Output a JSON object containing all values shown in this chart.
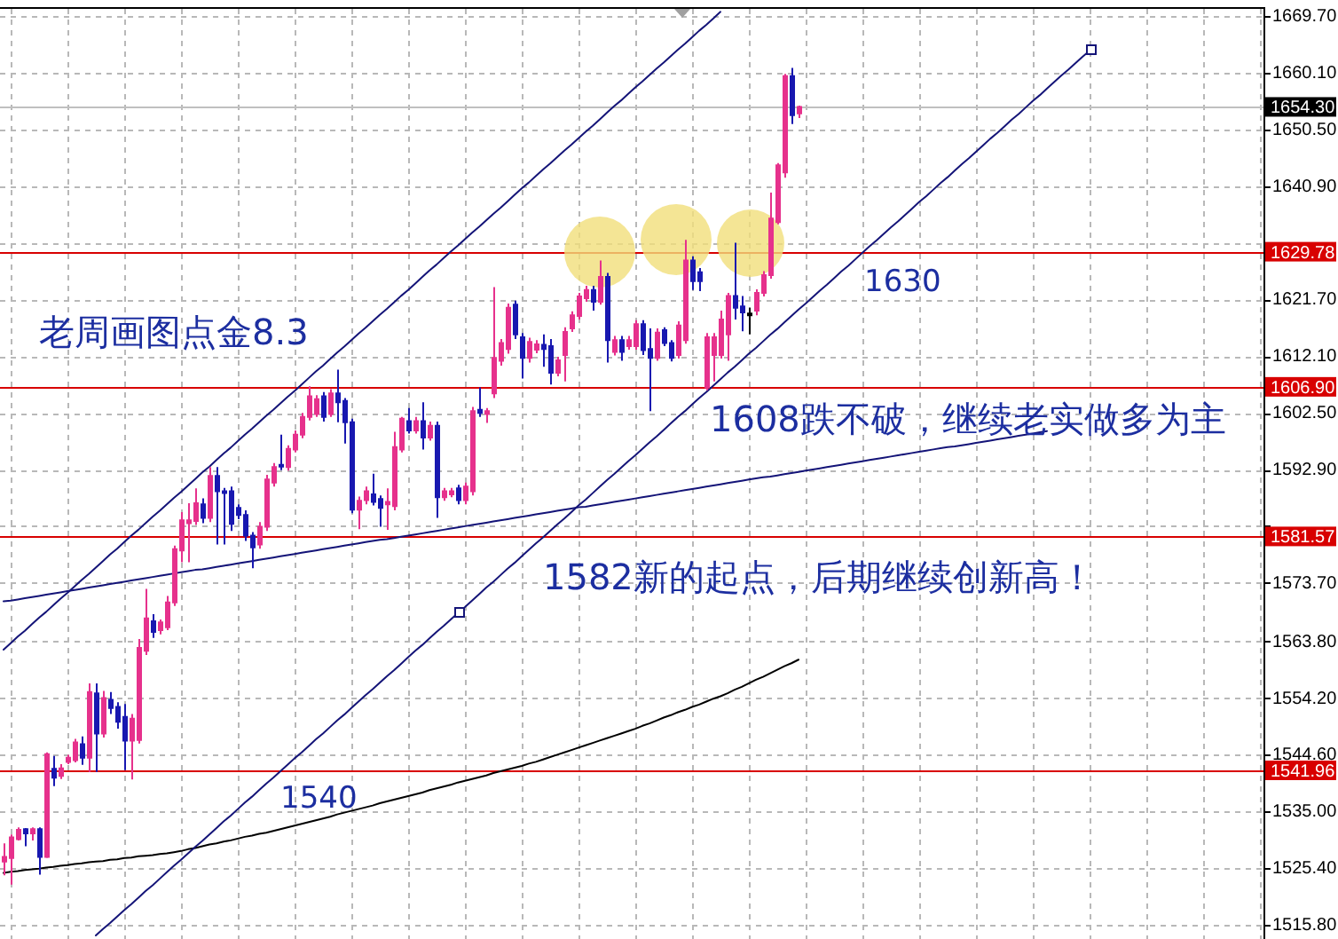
{
  "chart_data": {
    "type": "candlestick",
    "categories": [
      null,
      null,
      null,
      null,
      null,
      null,
      null,
      null,
      null,
      null,
      null,
      null,
      null,
      null,
      null,
      null,
      null,
      null,
      null,
      null,
      null,
      null,
      null,
      null,
      null,
      null,
      null,
      null,
      null,
      null,
      null,
      null,
      null,
      null,
      null,
      null,
      null,
      null,
      null,
      null,
      null,
      null,
      null,
      null,
      null,
      null,
      null,
      null,
      null,
      null,
      null,
      null,
      null,
      null,
      null,
      null,
      null,
      null,
      null,
      null,
      null,
      null,
      null,
      null,
      null,
      null,
      null,
      null,
      null,
      null,
      null,
      null,
      null,
      null,
      null,
      null,
      null,
      null,
      null,
      null,
      null,
      null,
      null,
      null,
      null,
      null,
      null,
      null,
      null,
      null,
      null,
      null,
      null,
      null,
      null,
      null,
      null,
      null,
      null,
      null,
      null,
      null,
      null,
      null,
      null,
      null,
      null,
      null,
      null,
      null,
      null,
      null,
      null,
      null,
      null,
      null,
      null,
      null,
      null,
      null,
      null,
      null,
      null,
      null,
      null,
      null,
      null,
      null,
      null,
      null,
      null,
      null,
      null,
      null,
      null,
      null,
      null,
      null,
      null,
      null,
      null,
      null,
      null,
      null,
      null,
      null,
      null,
      null,
      null,
      null,
      null,
      null,
      null,
      null,
      null,
      null,
      null,
      null,
      null,
      null,
      null,
      null,
      null,
      null,
      null,
      null,
      null,
      null,
      null,
      null,
      null,
      null,
      null,
      null,
      null,
      null,
      null,
      null
    ],
    "ohlc": [
      [
        1526.5,
        1529.6,
        1524.2,
        1527.3
      ],
      [
        1527.1,
        1531.1,
        1522.6,
        1530.6
      ],
      [
        1530.3,
        1532.3,
        1530.1,
        1531.9
      ],
      [
        1532.0,
        1532.2,
        1529.1,
        1531.3
      ],
      [
        1531.3,
        1532.3,
        1530.1,
        1532.0
      ],
      [
        1532.0,
        1532.3,
        1524.3,
        1527.3
      ],
      [
        1527.3,
        1545.0,
        1527.1,
        1544.7
      ],
      [
        1542.2,
        1544.4,
        1539.3,
        1540.7
      ],
      [
        1541.0,
        1543.0,
        1540.5,
        1542.3
      ],
      [
        1543.4,
        1544.6,
        1543.0,
        1544.1
      ],
      [
        1543.7,
        1547.3,
        1543.3,
        1546.7
      ],
      [
        1546.4,
        1547.7,
        1542.9,
        1544.1
      ],
      [
        1544.1,
        1556.7,
        1541.7,
        1555.2
      ],
      [
        1555.0,
        1556.7,
        1541.7,
        1548.2
      ],
      [
        1548.2,
        1555.4,
        1547.5,
        1554.2
      ],
      [
        1553.9,
        1555.2,
        1551.5,
        1552.5
      ],
      [
        1552.7,
        1553.5,
        1549.0,
        1550.2
      ],
      [
        1551.0,
        1553.2,
        1542.0,
        1547.0
      ],
      [
        1547.0,
        1551.5,
        1540.4,
        1550.7
      ],
      [
        1547.1,
        1564.2,
        1546.5,
        1562.7
      ],
      [
        1562.2,
        1572.7,
        1561.5,
        1567.7
      ],
      [
        1567.2,
        1568.4,
        1564.4,
        1565.4
      ],
      [
        1565.7,
        1567.5,
        1565.0,
        1567.0
      ],
      [
        1566.2,
        1571.5,
        1565.7,
        1570.4
      ],
      [
        1570.4,
        1580.0,
        1569.8,
        1579.4
      ],
      [
        1579.2,
        1585.7,
        1577.2,
        1584.3
      ],
      [
        1583.8,
        1587.2,
        1577.2,
        1584.3
      ],
      [
        1584.2,
        1589.7,
        1583.5,
        1587.2
      ],
      [
        1587.0,
        1588.0,
        1583.8,
        1584.7
      ],
      [
        1584.7,
        1593.3,
        1584.0,
        1591.8
      ],
      [
        1591.8,
        1593.3,
        1580.2,
        1589.2
      ],
      [
        1589.2,
        1589.8,
        1580.2,
        1589.0
      ],
      [
        1589.2,
        1590.0,
        1582.5,
        1583.7
      ],
      [
        1586.4,
        1587.0,
        1584.5,
        1585.2
      ],
      [
        1585.2,
        1586.0,
        1580.8,
        1581.7
      ],
      [
        1581.7,
        1582.3,
        1576.2,
        1579.7
      ],
      [
        1580.2,
        1584.0,
        1579.5,
        1583.2
      ],
      [
        1583.2,
        1592.0,
        1582.5,
        1591.2
      ],
      [
        1590.7,
        1594.0,
        1590.0,
        1593.3
      ],
      [
        1593.7,
        1598.8,
        1592.8,
        1593.4
      ],
      [
        1593.3,
        1597.0,
        1592.7,
        1596.4
      ],
      [
        1596.3,
        1599.5,
        1595.8,
        1598.8
      ],
      [
        1598.8,
        1602.5,
        1598.2,
        1601.8
      ],
      [
        1601.8,
        1607.0,
        1601.2,
        1605.3
      ],
      [
        1602.3,
        1605.5,
        1601.8,
        1604.8
      ],
      [
        1605.3,
        1606.0,
        1601.0,
        1601.8
      ],
      [
        1602.3,
        1606.5,
        1601.8,
        1605.8
      ],
      [
        1605.8,
        1609.8,
        1600.9,
        1604.3
      ],
      [
        1604.5,
        1605.0,
        1597.3,
        1600.9
      ],
      [
        1600.9,
        1601.5,
        1585.5,
        1586.1
      ],
      [
        1586.1,
        1588.3,
        1582.8,
        1587.6
      ],
      [
        1587.7,
        1590.0,
        1587.0,
        1589.2
      ],
      [
        1588.7,
        1592.2,
        1586.8,
        1587.4
      ],
      [
        1587.9,
        1588.5,
        1583.2,
        1586.4
      ],
      [
        1587.0,
        1589.7,
        1582.7,
        1587.4
      ],
      [
        1586.7,
        1599.3,
        1586.0,
        1596.7
      ],
      [
        1596.3,
        1601.8,
        1595.8,
        1601.5
      ],
      [
        1601.1,
        1603.3,
        1599.0,
        1599.5
      ],
      [
        1599.5,
        1601.8,
        1599.0,
        1601.1
      ],
      [
        1601.1,
        1604.3,
        1596.3,
        1598.3
      ],
      [
        1598.3,
        1601.0,
        1597.8,
        1600.3
      ],
      [
        1600.3,
        1601.0,
        1584.7,
        1588.2
      ],
      [
        1588.2,
        1589.8,
        1587.6,
        1589.2
      ],
      [
        1588.7,
        1589.8,
        1588.2,
        1589.2
      ],
      [
        1589.7,
        1590.3,
        1587.0,
        1587.7
      ],
      [
        1587.7,
        1590.7,
        1587.0,
        1590.0
      ],
      [
        1589.2,
        1603.5,
        1588.5,
        1602.8
      ],
      [
        1603.0,
        1606.8,
        1601.8,
        1602.5
      ],
      [
        1602.3,
        1603.3,
        1600.8,
        1602.8
      ],
      [
        1605.8,
        1623.8,
        1605.0,
        1611.8
      ],
      [
        1611.3,
        1615.0,
        1610.5,
        1614.3
      ],
      [
        1613.3,
        1621.0,
        1612.5,
        1620.3
      ],
      [
        1620.8,
        1621.5,
        1615.0,
        1615.8
      ],
      [
        1615.3,
        1616.0,
        1608.3,
        1611.8
      ],
      [
        1611.8,
        1615.2,
        1611.0,
        1614.5
      ],
      [
        1613.2,
        1614.8,
        1612.6,
        1614.1
      ],
      [
        1614.0,
        1615.8,
        1610.3,
        1613.3
      ],
      [
        1613.8,
        1615.0,
        1607.3,
        1609.3
      ],
      [
        1609.3,
        1612.0,
        1608.7,
        1611.4
      ],
      [
        1612.3,
        1617.0,
        1607.8,
        1616.2
      ],
      [
        1616.8,
        1619.7,
        1616.2,
        1619.0
      ],
      [
        1618.9,
        1622.8,
        1618.3,
        1622.2
      ],
      [
        1621.9,
        1624.0,
        1621.3,
        1623.3
      ],
      [
        1623.3,
        1624.0,
        1619.8,
        1621.3
      ],
      [
        1621.3,
        1628.3,
        1620.8,
        1625.5
      ],
      [
        1625.5,
        1626.2,
        1611.0,
        1614.8
      ],
      [
        1612.8,
        1615.5,
        1612.2,
        1614.8
      ],
      [
        1614.8,
        1615.5,
        1611.3,
        1612.8
      ],
      [
        1613.8,
        1615.5,
        1613.2,
        1614.8
      ],
      [
        1613.8,
        1618.2,
        1613.2,
        1617.5
      ],
      [
        1617.5,
        1618.2,
        1612.3,
        1613.1
      ],
      [
        1613.3,
        1616.8,
        1602.8,
        1611.8
      ],
      [
        1611.8,
        1616.8,
        1611.3,
        1616.1
      ],
      [
        1616.5,
        1617.0,
        1613.8,
        1614.3
      ],
      [
        1614.3,
        1614.8,
        1611.2,
        1611.8
      ],
      [
        1612.3,
        1618.0,
        1611.7,
        1617.3
      ],
      [
        1614.8,
        1631.8,
        1614.2,
        1628.3
      ],
      [
        1628.3,
        1629.0,
        1623.3,
        1624.8
      ],
      [
        1626.3,
        1627.0,
        1623.1,
        1624.8
      ],
      [
        1606.8,
        1616.0,
        1606.3,
        1615.3
      ],
      [
        1612.3,
        1616.0,
        1607.8,
        1615.3
      ],
      [
        1612.3,
        1619.8,
        1611.7,
        1618.3
      ],
      [
        1615.8,
        1622.8,
        1611.3,
        1622.3
      ],
      [
        1622.3,
        1631.3,
        1618.3,
        1620.3
      ],
      [
        1620.5,
        1622.3,
        1616.3,
        1619.5
      ],
      [
        1619.3,
        1620.3,
        1615.8,
        1619.3
      ],
      [
        1619.8,
        1623.4,
        1619.0,
        1622.8
      ],
      [
        1622.8,
        1626.5,
        1622.2,
        1625.8
      ],
      [
        1625.8,
        1639.8,
        1625.2,
        1635.4
      ],
      [
        1634.8,
        1644.8,
        1634.4,
        1644.4
      ],
      [
        1643.2,
        1659.9,
        1642.3,
        1659.5
      ],
      [
        1659.5,
        1660.9,
        1651.4,
        1652.9
      ],
      [
        1653.2,
        1654.5,
        1652.4,
        1654.3
      ],
      null,
      null,
      null,
      null,
      null,
      null,
      null,
      null,
      null,
      null,
      null,
      null,
      null,
      null,
      null,
      null,
      null,
      null,
      null,
      null,
      null,
      null,
      null,
      null,
      null,
      null,
      null,
      null,
      null,
      null,
      null,
      null,
      null,
      null,
      null,
      null,
      null,
      null,
      null,
      null,
      null,
      null,
      null,
      null,
      null,
      null,
      null,
      null,
      null,
      null,
      null,
      null,
      null,
      null,
      null,
      null,
      null,
      null,
      null,
      null,
      null,
      null,
      null,
      null,
      null
    ],
    "colors": [
      "#e6318c",
      "#e6318c",
      "#e6318c",
      "#1818b0",
      "#e6318c",
      "#1818b0",
      "#e6318c",
      "#1818b0",
      "#e6318c",
      "#e6318c",
      "#e6318c",
      "#1818b0",
      "#e6318c",
      "#1818b0",
      "#e6318c",
      "#1818b0",
      "#1818b0",
      "#1818b0",
      "#e6318c",
      "#e6318c",
      "#e6318c",
      "#1818b0",
      "#e6318c",
      "#e6318c",
      "#e6318c",
      "#e6318c",
      "#e6318c",
      "#e6318c",
      "#1818b0",
      "#e6318c",
      "#1818b0",
      "#1818b0",
      "#1818b0",
      "#1818b0",
      "#1818b0",
      "#1818b0",
      "#e6318c",
      "#e6318c",
      "#e6318c",
      "#1818b0",
      "#e6318c",
      "#e6318c",
      "#e6318c",
      "#e6318c",
      "#e6318c",
      "#1818b0",
      "#e6318c",
      "#1818b0",
      "#1818b0",
      "#1818b0",
      "#e6318c",
      "#e6318c",
      "#1818b0",
      "#1818b0",
      "#e6318c",
      "#e6318c",
      "#e6318c",
      "#1818b0",
      "#e6318c",
      "#1818b0",
      "#e6318c",
      "#1818b0",
      "#e6318c",
      "#e6318c",
      "#1818b0",
      "#e6318c",
      "#e6318c",
      "#1818b0",
      "#e6318c",
      "#e6318c",
      "#e6318c",
      "#e6318c",
      "#1818b0",
      "#1818b0",
      "#e6318c",
      "#e6318c",
      "#1818b0",
      "#1818b0",
      "#e6318c",
      "#e6318c",
      "#e6318c",
      "#e6318c",
      "#e6318c",
      "#1818b0",
      "#e6318c",
      "#1818b0",
      "#e6318c",
      "#1818b0",
      "#e6318c",
      "#e6318c",
      "#1818b0",
      "#1818b0",
      "#e6318c",
      "#1818b0",
      "#1818b0",
      "#e6318c",
      "#e6318c",
      "#1818b0",
      "#1818b0",
      "#e6318c",
      "#e6318c",
      "#e6318c",
      "#e6318c",
      "#1818b0",
      "#1818b0",
      "#000000",
      "#e6318c",
      "#e6318c",
      "#e6318c",
      "#e6318c",
      "#e6318c",
      "#1818b0",
      "#e6318c",
      null,
      null,
      null,
      null,
      null,
      null,
      null,
      null,
      null,
      null,
      null,
      null,
      null,
      null,
      null,
      null,
      null,
      null,
      null,
      null,
      null,
      null,
      null,
      null,
      null,
      null,
      null,
      null,
      null,
      null,
      null,
      null,
      null,
      null,
      null,
      null,
      null,
      null,
      null,
      null,
      null,
      null,
      null,
      null,
      null,
      null,
      null,
      null,
      null,
      null,
      null,
      null,
      null,
      null,
      null,
      null,
      null,
      null,
      null,
      null,
      null,
      null,
      null,
      null,
      null
    ],
    "series": [
      {
        "type": "line",
        "color": "#000000",
        "values": [
          1524.6,
          1524.8,
          1524.9,
          1525.1,
          1525.2,
          1525.3,
          1525.5,
          1525.6,
          1525.8,
          1525.9,
          1526.1,
          1526.2,
          1526.4,
          1526.5,
          1526.6,
          1526.8,
          1526.9,
          1527.1,
          1527.2,
          1527.4,
          1527.5,
          1527.6,
          1527.8,
          1527.9,
          1528.1,
          1528.3,
          1528.6,
          1528.8,
          1529.1,
          1529.4,
          1529.6,
          1529.9,
          1530.1,
          1530.4,
          1530.7,
          1530.9,
          1531.2,
          1531.4,
          1531.7,
          1532.0,
          1532.3,
          1532.6,
          1532.9,
          1533.2,
          1533.5,
          1533.8,
          1534.1,
          1534.5,
          1534.8,
          1535.1,
          1535.4,
          1535.7,
          1536.0,
          1536.4,
          1536.7,
          1537.0,
          1537.3,
          1537.6,
          1537.9,
          1538.2,
          1538.6,
          1538.9,
          1539.2,
          1539.5,
          1539.9,
          1540.2,
          1540.5,
          1540.8,
          1541.1,
          1541.5,
          1541.8,
          1542.1,
          1542.4,
          1542.7,
          1543.1,
          1543.4,
          1543.8,
          1544.2,
          1544.6,
          1545.0,
          1545.4,
          1545.8,
          1546.2,
          1546.6,
          1547.0,
          1547.4,
          1547.8,
          1548.2,
          1548.6,
          1549.0,
          1549.5,
          1549.9,
          1550.4,
          1550.9,
          1551.3,
          1551.8,
          1552.2,
          1552.7,
          1553.1,
          1553.6,
          1554.1,
          1554.5,
          1555.0,
          1555.6,
          1556.1,
          1556.7,
          1557.3,
          1557.8,
          1558.4,
          1559.0,
          1559.6,
          1560.1,
          1560.7,
          null,
          null,
          null,
          null,
          null,
          null,
          null,
          null,
          null,
          null,
          null,
          null,
          null,
          null,
          null,
          null,
          null,
          null,
          null,
          null,
          null,
          null,
          null,
          null,
          null,
          null,
          null,
          null,
          null,
          null,
          null,
          null,
          null,
          null,
          null,
          null,
          null,
          null,
          null,
          null,
          null,
          null,
          null,
          null,
          null,
          null,
          null,
          null,
          null,
          null,
          null,
          null,
          null,
          null,
          null,
          null,
          null,
          null,
          null,
          null,
          null,
          null,
          null,
          null,
          null
        ]
      },
      {
        "type": "line",
        "color": "#141478",
        "values": [
          1562.4,
          1563.5,
          1564.6,
          1565.6,
          1566.7,
          1567.8,
          1568.8,
          1569.9,
          1571.0,
          1572.0,
          1573.1,
          1574.2,
          1575.2,
          1576.3,
          1577.4,
          1578.5,
          1579.5,
          1580.6,
          1581.7,
          1582.7,
          1583.8,
          1584.9,
          1585.9,
          1587.0,
          1588.1,
          1589.1,
          1590.2,
          1591.3,
          1592.4,
          1593.4,
          1594.5,
          1595.6,
          1596.6,
          1597.7,
          1598.8,
          1599.8,
          1600.9,
          1602.0,
          1603.0,
          1604.1,
          1605.2,
          1606.2,
          1607.3,
          1608.4,
          1609.5,
          1610.5,
          1611.6,
          1612.7,
          1613.7,
          1614.8,
          1615.9,
          1616.9,
          1618.0,
          1619.1,
          1620.1,
          1621.2,
          1622.3,
          1623.3,
          1624.4,
          1625.5,
          1626.6,
          1627.6,
          1628.7,
          1629.8,
          1630.8,
          1631.9,
          1633.0,
          1634.0,
          1635.1,
          1636.2,
          1637.2,
          1638.3,
          1639.4,
          1640.5,
          1641.5,
          1642.6,
          1643.7,
          1644.7,
          1645.8,
          1646.9,
          1647.9,
          1649.0,
          1650.1,
          1651.1,
          1652.2,
          1653.3,
          1654.4,
          1655.4,
          1656.5,
          1657.6,
          1658.6,
          1659.7,
          1660.8,
          1661.8,
          1662.9,
          1664.0,
          1665.0,
          1666.1,
          1667.2,
          1668.2,
          1669.3,
          1670.4,
          null,
          null,
          null,
          null,
          null,
          null,
          null,
          null,
          null,
          null,
          null,
          null,
          null,
          null,
          null,
          null,
          null,
          null,
          null,
          null,
          null,
          null,
          null,
          null,
          null,
          null,
          null,
          null,
          null,
          null,
          null,
          null,
          null,
          null,
          null,
          null,
          null,
          null,
          null,
          null,
          null,
          null,
          null,
          null,
          null,
          null,
          null,
          null,
          null,
          null,
          null,
          null,
          null,
          null,
          null,
          null,
          null,
          null,
          null,
          null,
          null,
          null,
          null,
          null,
          null,
          null,
          null,
          null,
          null,
          null,
          null,
          null,
          null,
          null,
          null,
          null
        ]
      },
      {
        "type": "line",
        "color": "#141478",
        "values": [
          null,
          null,
          null,
          null,
          null,
          null,
          null,
          null,
          null,
          null,
          null,
          null,
          null,
          1514.0,
          1515.1,
          1516.1,
          1517.2,
          1518.3,
          1519.3,
          1520.4,
          1521.5,
          1522.5,
          1523.6,
          1524.7,
          1525.8,
          1526.8,
          1527.9,
          1529.0,
          1530.0,
          1531.1,
          1532.2,
          1533.3,
          1534.3,
          1535.4,
          1536.5,
          1537.5,
          1538.6,
          1539.7,
          1540.7,
          1541.8,
          1542.9,
          1544.0,
          1545.0,
          1546.1,
          1547.2,
          1548.2,
          1549.3,
          1550.4,
          1551.4,
          1552.5,
          1553.6,
          1554.7,
          1555.7,
          1556.8,
          1557.9,
          1558.9,
          1560.0,
          1561.1,
          1562.2,
          1563.2,
          1564.3,
          1565.4,
          1566.4,
          1567.5,
          1568.6,
          1569.6,
          1570.7,
          1571.8,
          1572.9,
          1573.9,
          1575.0,
          1576.1,
          1577.1,
          1578.2,
          1579.3,
          1580.4,
          1581.4,
          1582.5,
          1583.6,
          1584.6,
          1585.7,
          1586.8,
          1587.8,
          1588.9,
          1590.0,
          1591.1,
          1592.1,
          1593.2,
          1594.3,
          1595.3,
          1596.4,
          1597.5,
          1598.5,
          1599.6,
          1600.7,
          1601.8,
          1602.8,
          1603.9,
          1605.0,
          1606.0,
          1607.1,
          1608.2,
          1609.3,
          1610.3,
          1611.4,
          1612.5,
          1613.5,
          1614.6,
          1615.7,
          1616.7,
          1617.8,
          1618.9,
          1620.0,
          1621.0,
          1622.1,
          1623.2,
          1624.2,
          1625.3,
          1626.4,
          1627.4,
          1628.5,
          1629.6,
          1630.7,
          1631.7,
          1632.8,
          1633.9,
          1634.9,
          1636.0,
          1637.1,
          1638.2,
          1639.2,
          1640.3,
          1641.4,
          1642.4,
          1643.5,
          1644.6,
          1645.6,
          1646.7,
          1647.8,
          1648.9,
          1649.9,
          1651.0,
          1652.1,
          1653.1,
          1654.2,
          1655.3,
          1656.3,
          1657.4,
          1658.5,
          1659.6,
          1660.6,
          1661.7,
          1662.8,
          1663.8,
          null,
          null,
          null,
          null,
          null,
          null,
          null,
          null,
          null,
          null,
          null,
          null,
          null,
          null,
          null,
          null,
          null,
          null,
          null,
          null,
          null,
          null,
          null,
          null
        ]
      },
      {
        "type": "line",
        "color": "#141478",
        "values": [
          1570.6,
          1570.7,
          1570.9,
          1571.1,
          1571.3,
          1571.5,
          1571.7,
          1571.9,
          1572.1,
          1572.3,
          1572.5,
          1572.7,
          1572.9,
          1573.1,
          1573.3,
          1573.5,
          1573.7,
          1573.9,
          1574.1,
          1574.3,
          1574.5,
          1574.7,
          1574.9,
          1575.1,
          1575.3,
          1575.5,
          1575.7,
          1575.9,
          1576.0,
          1576.2,
          1576.4,
          1576.6,
          1576.8,
          1577.0,
          1577.2,
          1577.4,
          1577.6,
          1577.8,
          1578.0,
          1578.2,
          1578.4,
          1578.6,
          1578.8,
          1579.0,
          1579.2,
          1579.4,
          1579.6,
          1579.8,
          1580.0,
          1580.2,
          1580.4,
          1580.6,
          1580.8,
          1581.0,
          1581.1,
          1581.3,
          1581.5,
          1581.7,
          1581.9,
          1582.1,
          1582.3,
          1582.5,
          1582.7,
          1582.9,
          1583.1,
          1583.3,
          1583.5,
          1583.7,
          1583.9,
          1584.1,
          1584.3,
          1584.5,
          1584.7,
          1584.9,
          1585.1,
          1585.3,
          1585.5,
          1585.7,
          1585.9,
          1586.1,
          1586.3,
          1586.5,
          1586.6,
          1586.8,
          1587.0,
          1587.2,
          1587.4,
          1587.6,
          1587.8,
          1588.0,
          1588.2,
          1588.4,
          1588.6,
          1588.8,
          1589.0,
          1589.2,
          1589.4,
          1589.6,
          1589.8,
          1590.0,
          1590.2,
          1590.4,
          1590.6,
          1590.8,
          1591.0,
          1591.2,
          1591.4,
          1591.6,
          1591.7,
          1591.9,
          1592.1,
          1592.3,
          1592.5,
          1592.7,
          1592.9,
          1593.1,
          1593.3,
          1593.5,
          1593.7,
          1593.9,
          1594.1,
          1594.3,
          1594.5,
          1594.7,
          1594.9,
          1595.1,
          1595.3,
          1595.5,
          1595.7,
          1595.9,
          1596.1,
          1596.3,
          1596.5,
          1596.7,
          1596.8,
          1597.0,
          1597.2,
          1597.4,
          1597.6,
          1597.8,
          1598.0,
          1598.2,
          1598.4,
          1598.6,
          1598.8,
          1599.0,
          1599.2,
          1599.4,
          null,
          null,
          null,
          null,
          null,
          null,
          null,
          null,
          null,
          null,
          null,
          null,
          null,
          null,
          null,
          null,
          null,
          null,
          null,
          null,
          null,
          null,
          null,
          null,
          null,
          null,
          null,
          null,
          null,
          null
        ]
      }
    ],
    "ylim": [
      1513.4,
      1670.9
    ],
    "yticks": [
      {
        "value": 1515.8,
        "label": "1515.80"
      },
      {
        "value": 1525.4,
        "label": "1525.40"
      },
      {
        "value": 1535,
        "label": "1535.00"
      },
      {
        "value": 1544.6,
        "label": "1544.60"
      },
      {
        "value": 1554.2,
        "label": "1554.20"
      },
      {
        "value": 1563.8,
        "label": "1563.80"
      },
      {
        "value": 1573.7,
        "label": "1573.70"
      },
      {
        "value": 1583.3,
        "label": null
      },
      {
        "value": 1592.9,
        "label": "1592.90"
      },
      {
        "value": 1602.5,
        "label": "1602.50"
      },
      {
        "value": 1612.1,
        "label": "1612.10"
      },
      {
        "value": 1621.7,
        "label": "1621.70"
      },
      {
        "value": 1631.3,
        "label": null
      },
      {
        "value": 1640.9,
        "label": "1640.90"
      },
      {
        "value": 1650.5,
        "label": "1650.50"
      },
      {
        "value": 1660.1,
        "label": "1660.10"
      },
      {
        "value": 1669.7,
        "label": "1669.70"
      }
    ],
    "tick_labels": "y",
    "grid": true,
    "ref_lines": [
      {
        "axis": "y",
        "value": 1654.3,
        "label": "1654.30",
        "color": "#c0c0c0"
      },
      {
        "axis": "y",
        "value": 1629.78,
        "label": "1629.78",
        "color": "#d80000"
      },
      {
        "axis": "y",
        "value": 1606.9,
        "label": "1606.90",
        "color": "#d80000"
      },
      {
        "axis": "y",
        "value": 1581.57,
        "label": "1581.57",
        "color": "#d80000"
      },
      {
        "axis": "y",
        "value": 1541.96,
        "label": "1541.96",
        "color": "#d80000"
      }
    ],
    "annotations": [
      "老周画图点金8.3",
      "1630",
      "1608跌不破，继续老实做多为主",
      "1582新的起点，后期继续创新高！",
      "1540"
    ]
  }
}
